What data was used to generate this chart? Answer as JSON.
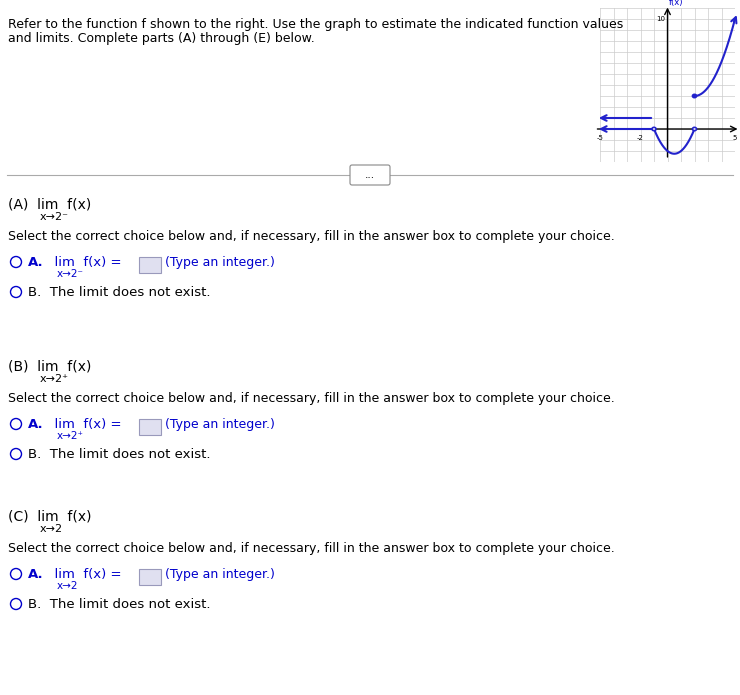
{
  "fig_w": 7.4,
  "fig_h": 6.95,
  "dpi": 100,
  "bg_color": "#ffffff",
  "black": "#000000",
  "blue": "#1a1aff",
  "dark_blue": "#0000cc",
  "gray": "#666666",
  "light_gray": "#aaaaaa",
  "grid_color": "#cccccc",
  "curve_color": "#2222cc",
  "graph_xlim": [
    -5,
    5
  ],
  "graph_ylim": [
    -3,
    11
  ],
  "intro_line1": "Refer to the function f shown to the right. Use the graph to estimate the indicated function values",
  "intro_line2": "and limits. Complete parts (A) through (E) below.",
  "parts": [
    {
      "label": "(A)",
      "subscript": "x→2⁻",
      "choice_A_sub": "x→2⁻"
    },
    {
      "label": "(B)",
      "subscript": "x→2⁺",
      "choice_A_sub": "x→2⁺"
    },
    {
      "label": "(C)",
      "subscript": "x→2",
      "choice_A_sub": "x→2"
    }
  ],
  "select_text": "Select the correct choice below and, if necessary, fill in the answer box to complete your choice.",
  "choice_B_text": "The limit does not exist.",
  "type_int_text": "(Type an integer.)"
}
